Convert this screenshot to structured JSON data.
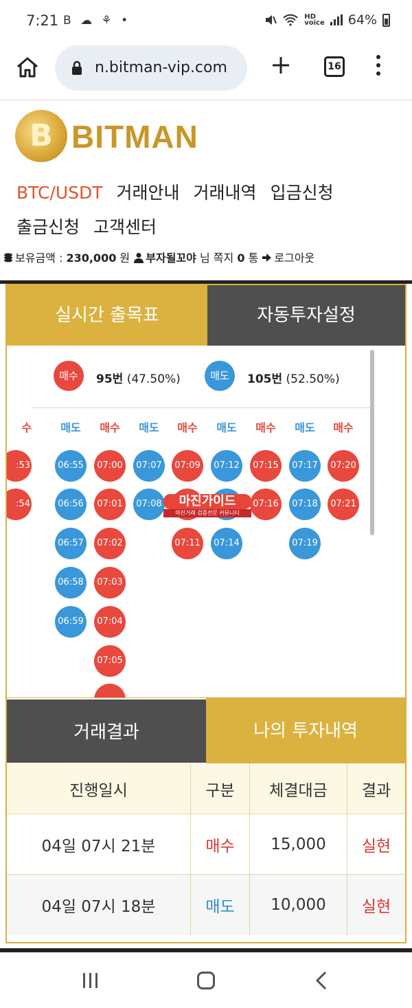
{
  "status_bar": {
    "time": "7:21",
    "left_icons": "B ☁ ⚘ •",
    "battery": "64%",
    "icons": [
      "mute-icon",
      "wifi-icon",
      "hd-voice-icon",
      "signal-icon",
      "battery-icon"
    ]
  },
  "browser": {
    "url": "n.bitman-vip.com",
    "tab_count": "16"
  },
  "site": {
    "logo_text": "BITMAN",
    "logo_coin": "B",
    "nav": [
      "BTC/USDT",
      "거래안내",
      "거래내역",
      "입금신청",
      "출금신청",
      "고객센터"
    ],
    "user": {
      "balance_label": "보유금액 :",
      "balance_value": "230,000",
      "balance_unit": "원",
      "nickname": "부자될꼬야",
      "nickname_suffix": "님",
      "messages_label": "쪽지",
      "messages_count": "0",
      "messages_unit": "통",
      "logout": "로그아웃"
    }
  },
  "panel": {
    "tabs": [
      "실시간 출목표",
      "자동투자설정"
    ],
    "summary": {
      "buy_label": "매수",
      "buy_count": "95번",
      "buy_pct": "(47.50%)",
      "sell_label": "매도",
      "sell_count": "105번",
      "sell_pct": "(52.50%)"
    },
    "columns": [
      {
        "head": "수",
        "type": "buy",
        "times": [
          ":53",
          ":54"
        ]
      },
      {
        "head": "매도",
        "type": "sell",
        "times": [
          "06:55",
          "06:56",
          "06:57",
          "06:58",
          "06:59"
        ]
      },
      {
        "head": "매수",
        "type": "buy",
        "times": [
          "07:00",
          "07:01",
          "07:02",
          "07:03",
          "07:04",
          "07:05",
          ""
        ]
      },
      {
        "head": "매도",
        "type": "sell",
        "times": [
          "07:07",
          "07:08"
        ]
      },
      {
        "head": "매수",
        "type": "buy",
        "times": [
          "07:09",
          "",
          "07:11"
        ]
      },
      {
        "head": "매도",
        "type": "sell",
        "times": [
          "07:12",
          "",
          "07:14"
        ]
      },
      {
        "head": "매수",
        "type": "buy",
        "times": [
          "07:15",
          "07:16"
        ]
      },
      {
        "head": "매도",
        "type": "sell",
        "times": [
          "07:17",
          "07:18",
          "07:19"
        ]
      },
      {
        "head": "매수",
        "type": "buy",
        "times": [
          "07:20",
          "07:21"
        ]
      }
    ],
    "watermark": {
      "title": "마진가이드",
      "subtitle": "마진거래 검증전문 커뮤니티"
    },
    "bottom_tabs": [
      "거래결과",
      "나의 투자내역"
    ],
    "table": {
      "headers": [
        "진행일시",
        "구분",
        "체결대금",
        "결과"
      ],
      "rows": [
        {
          "date": "04일 07시 21분",
          "type": "매수",
          "amount": "15,000",
          "result": "실현"
        },
        {
          "date": "04일 07시 18분",
          "type": "매도",
          "amount": "10,000",
          "result": "실현"
        }
      ]
    }
  },
  "colors": {
    "buy": "#e8483d",
    "sell": "#3a97da",
    "gold": "#dbb23f",
    "dark": "#4f4f4f",
    "active_nav": "#e0532e"
  }
}
